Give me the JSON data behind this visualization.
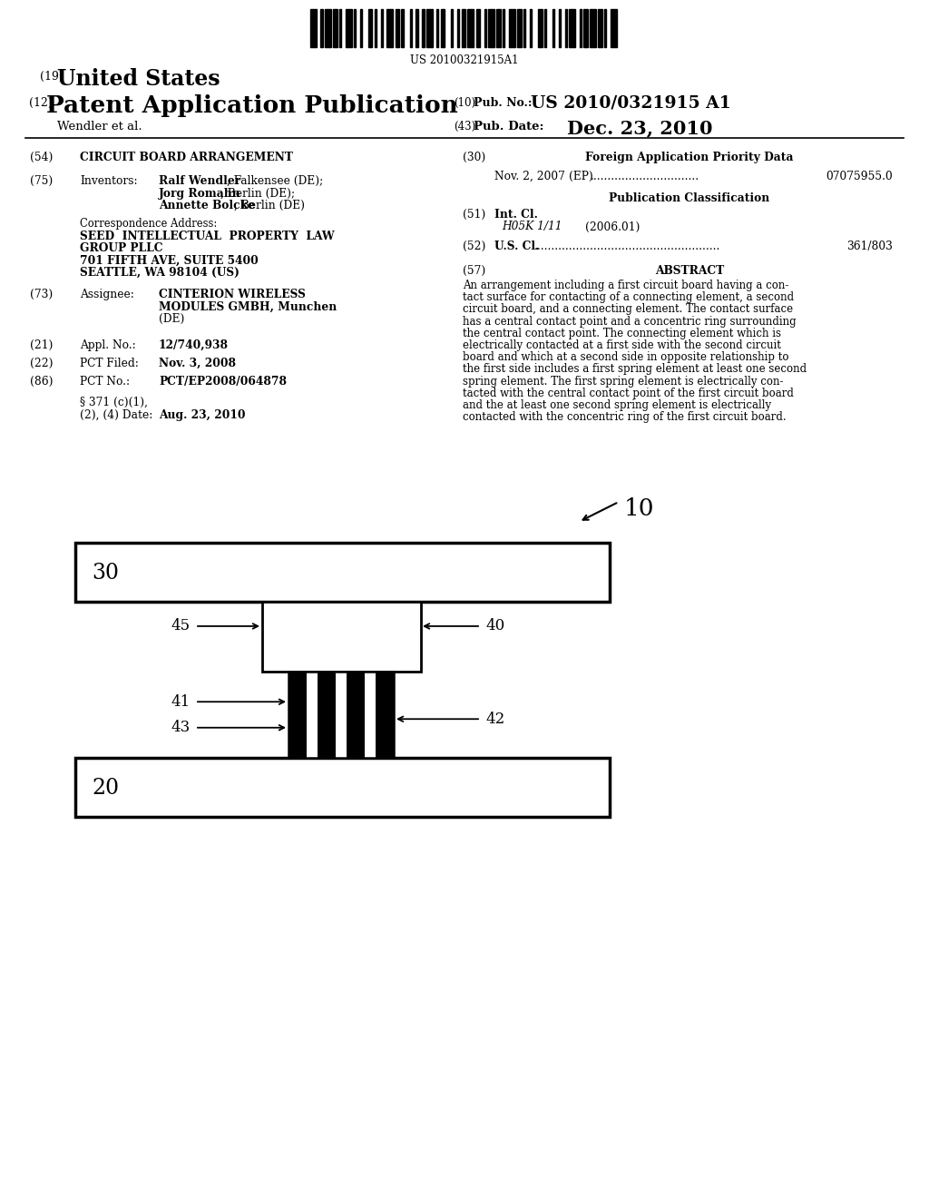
{
  "bg_color": "#ffffff",
  "barcode_text": "US 20100321915A1",
  "header_line1_num": "(19)",
  "header_line1_text": "United States",
  "header_line2_num": "(12)",
  "header_line2_text": "Patent Application Publication",
  "header_right_num1": "(10)",
  "header_right_pub": "Pub. No.:",
  "header_right_pub_val": "US 2010/0321915 A1",
  "header_right_num2": "(43)",
  "header_right_date_label": "Pub. Date:",
  "header_right_date_val": "Dec. 23, 2010",
  "header_line3": "Wendler et al.",
  "section54_num": "(54)",
  "section54_title": "CIRCUIT BOARD ARRANGEMENT",
  "section75_num": "(75)",
  "section75_label": "Inventors:",
  "section75_bold1": "Ralf Wendler",
  "section75_reg1": ", Falkensee (DE);",
  "section75_bold2": "Jorg Romahn",
  "section75_reg2": ", Berlin (DE);",
  "section75_bold3": "Annette Bolcke",
  "section75_reg3": ", Berlin (DE)",
  "corr_label": "Correspondence Address:",
  "corr_line1": "SEED  INTELLECTUAL  PROPERTY  LAW",
  "corr_line2": "GROUP PLLC",
  "corr_line3": "701 FIFTH AVE, SUITE 5400",
  "corr_line4": "SEATTLE, WA 98104 (US)",
  "section73_num": "(73)",
  "section73_label": "Assignee:",
  "section73_val1": "CINTERION WIRELESS",
  "section73_val2": "MODULES GMBH, Munchen",
  "section73_val3": "(DE)",
  "section21_num": "(21)",
  "section21_label": "Appl. No.:",
  "section21_val": "12/740,938",
  "section22_num": "(22)",
  "section22_label": "PCT Filed:",
  "section22_val": "Nov. 3, 2008",
  "section86_num": "(86)",
  "section86_label": "PCT No.:",
  "section86_val": "PCT/EP2008/064878",
  "section371_label1": "§ 371 (c)(1),",
  "section371_label2": "(2), (4) Date:",
  "section371_val": "Aug. 23, 2010",
  "section30_num": "(30)",
  "section30_title": "Foreign Application Priority Data",
  "priority_date": "Nov. 2, 2007",
  "priority_region": "(EP)",
  "priority_dots": "...............................",
  "priority_num": "07075955.0",
  "pub_class_title": "Publication Classification",
  "section51_num": "(51)",
  "section51_label": "Int. Cl.",
  "section51_class": "H05K 1/11",
  "section51_year": "(2006.01)",
  "section52_num": "(52)",
  "section52_label": "U.S. Cl.",
  "section52_dots": ".....................................................",
  "section52_val": "361/803",
  "section57_num": "(57)",
  "section57_title": "ABSTRACT",
  "abstract_lines": [
    "An arrangement including a first circuit board having a con-",
    "tact surface for contacting of a connecting element, a second",
    "circuit board, and a connecting element. The contact surface",
    "has a central contact point and a concentric ring surrounding",
    "the central contact point. The connecting element which is",
    "electrically contacted at a first side with the second circuit",
    "board and which at a second side in opposite relationship to",
    "the first side includes a first spring element at least one second",
    "spring element. The first spring element is electrically con-",
    "tacted with the central contact point of the first circuit board",
    "and the at least one second spring element is electrically",
    "contacted with the concentric ring of the first circuit board."
  ],
  "diagram_label10": "10",
  "diagram_label30": "30",
  "diagram_label20": "20",
  "diagram_label40": "40",
  "diagram_label41": "41",
  "diagram_label42": "42",
  "diagram_label43": "43",
  "diagram_label45": "45"
}
